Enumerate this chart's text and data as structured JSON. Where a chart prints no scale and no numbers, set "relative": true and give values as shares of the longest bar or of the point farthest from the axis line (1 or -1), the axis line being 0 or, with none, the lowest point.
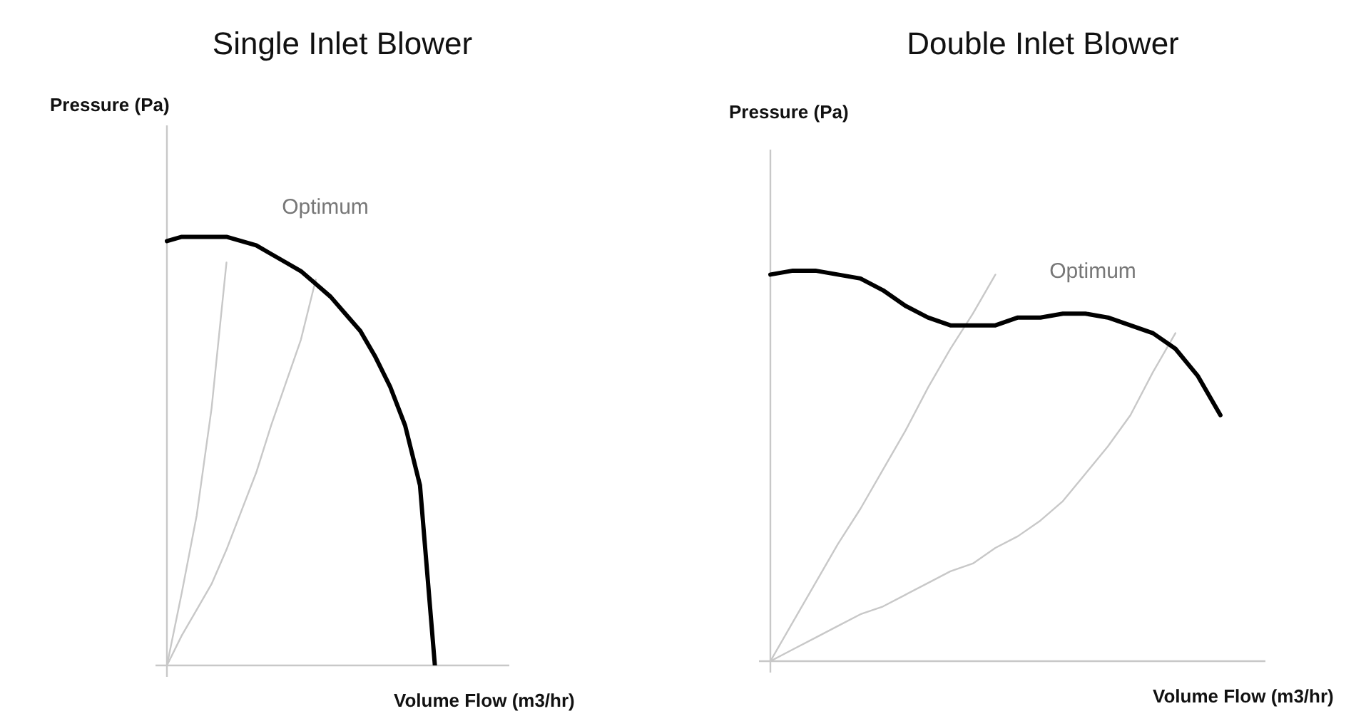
{
  "chart_data": [
    {
      "type": "line",
      "title": "Single Inlet Blower",
      "xlabel": "Volume Flow (m3/hr)",
      "ylabel": "Pressure (Pa)",
      "relative": true,
      "annotations": [
        "Optimum"
      ],
      "categories": [
        null,
        null,
        null,
        null,
        null,
        null,
        null,
        null,
        null,
        null,
        null,
        null,
        null,
        null,
        null,
        null,
        null,
        null,
        null,
        null,
        null,
        null,
        null,
        null
      ],
      "series": [
        {
          "color": "#000000",
          "values": [
            0.99,
            1,
            1,
            1,
            1,
            0.99,
            0.98,
            0.96,
            0.94,
            0.92,
            0.89,
            0.86,
            0.82,
            0.78,
            0.72,
            0.65,
            0.56,
            0.42,
            0,
            null,
            null,
            null,
            null,
            null
          ]
        },
        {
          "color": "#c8c8c8",
          "values": [
            0,
            0.17,
            0.35,
            0.6,
            0.94,
            null,
            null,
            null,
            null,
            null,
            null,
            null,
            null,
            null,
            null,
            null,
            null,
            null,
            null,
            null,
            null,
            null,
            null,
            null
          ]
        },
        {
          "color": "#c8c8c8",
          "values": [
            0,
            0.07,
            0.13,
            0.19,
            0.27,
            0.36,
            0.45,
            0.56,
            0.66,
            0.76,
            0.9,
            null,
            null,
            null,
            null,
            null,
            null,
            null,
            null,
            null,
            null,
            null,
            null,
            null
          ]
        }
      ]
    },
    {
      "type": "line",
      "title": "Double Inlet Blower",
      "xlabel": "Volume Flow (m3/hr)",
      "ylabel": "Pressure (Pa)",
      "relative": true,
      "annotations": [
        "Optimum"
      ],
      "categories": [
        null,
        null,
        null,
        null,
        null,
        null,
        null,
        null,
        null,
        null,
        null,
        null,
        null,
        null,
        null,
        null,
        null,
        null,
        null,
        null,
        null,
        null,
        null
      ],
      "series": [
        {
          "color": "#000000",
          "values": [
            0.99,
            1,
            1,
            0.99,
            0.98,
            0.95,
            0.91,
            0.88,
            0.86,
            0.86,
            0.86,
            0.88,
            0.88,
            0.89,
            0.89,
            0.88,
            0.86,
            0.84,
            0.8,
            0.73,
            0.63,
            null,
            null
          ]
        },
        {
          "color": "#c8c8c8",
          "values": [
            0,
            0.1,
            0.2,
            0.3,
            0.39,
            0.49,
            0.59,
            0.7,
            0.8,
            0.89,
            0.99,
            null,
            null,
            null,
            null,
            null,
            null,
            null,
            null,
            null,
            null,
            null,
            null
          ]
        },
        {
          "color": "#c8c8c8",
          "values": [
            0,
            0.03,
            0.06,
            0.09,
            0.12,
            0.14,
            0.17,
            0.2,
            0.23,
            0.25,
            0.29,
            0.32,
            0.36,
            0.41,
            0.48,
            0.55,
            0.63,
            0.74,
            0.84,
            null,
            null,
            null,
            null
          ]
        }
      ]
    }
  ]
}
